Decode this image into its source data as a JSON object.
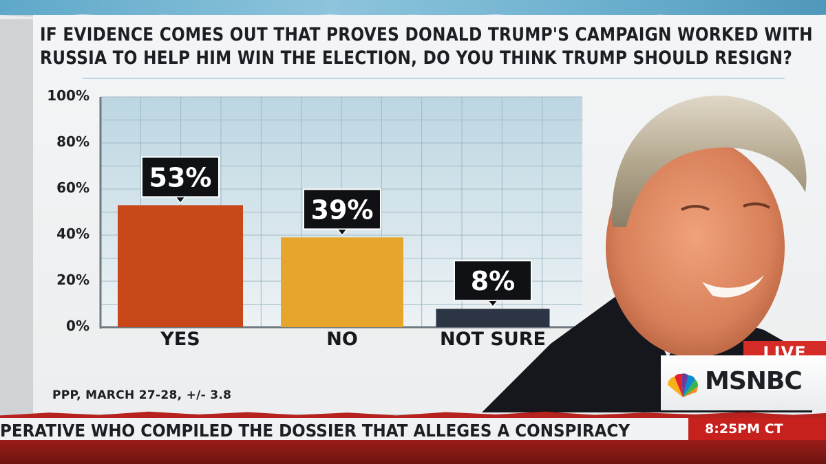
{
  "headline": {
    "line1": "IF EVIDENCE COMES OUT THAT PROVES DONALD TRUMP'S CAMPAIGN WORKED WITH",
    "line2": "RUSSIA TO HELP HIM WIN THE ELECTION, DO YOU THINK TRUMP SHOULD RESIGN?"
  },
  "chart_data": {
    "type": "bar",
    "title": "IF EVIDENCE COMES OUT THAT PROVES DONALD TRUMP'S CAMPAIGN WORKED WITH RUSSIA TO HELP HIM WIN THE ELECTION, DO YOU THINK TRUMP SHOULD RESIGN?",
    "categories": [
      "YES",
      "NO",
      "NOT SURE"
    ],
    "values": [
      53,
      39,
      8
    ],
    "data_labels": [
      "53%",
      "39%",
      "8%"
    ],
    "bar_colors": [
      "#c8481a",
      "#e6a52b",
      "#2b3544"
    ],
    "yticks": [
      "0%",
      "20%",
      "40%",
      "60%",
      "80%",
      "100%"
    ],
    "ylim": [
      0,
      100
    ],
    "grid": true,
    "xlabel": "",
    "ylabel": ""
  },
  "source": "PPP, MARCH 27-28, +/- 3.8",
  "network": {
    "live_label": "LIVE",
    "logo_text": "MSNBC"
  },
  "ticker": {
    "text": "PERATIVE WHO COMPILED THE DOSSIER THAT ALLEGES A CONSPIRACY BET",
    "time": "8:25PM CT"
  },
  "colors": {
    "grid_bg": "#c9dfe8",
    "ticker_red": "#c6211d"
  },
  "photo": {
    "subject": "portrait-photo"
  }
}
